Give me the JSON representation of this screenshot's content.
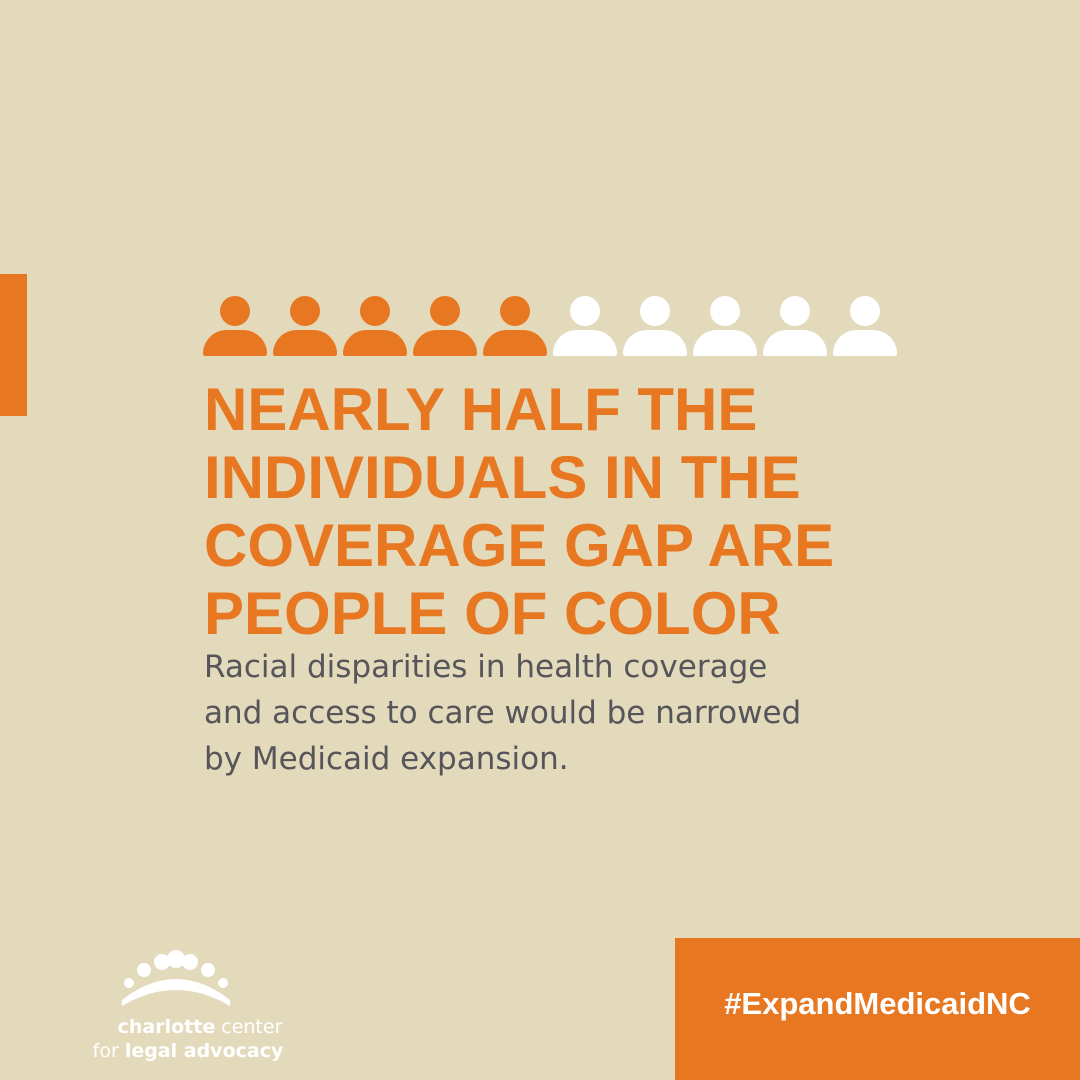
{
  "colors": {
    "background": "#e3dabb",
    "accent": "#e87722",
    "body_text": "#55555a",
    "white": "#ffffff"
  },
  "icon_row": {
    "icon": "person-icon",
    "total": 10,
    "highlighted": 5,
    "highlight_color": "#e87722",
    "other_color": "#ffffff"
  },
  "headline": {
    "lines": [
      "NEARLY HALF THE",
      "INDIVIDUALS IN THE",
      "COVERAGE GAP ARE",
      "PEOPLE OF COLOR"
    ]
  },
  "subtext": {
    "lines": [
      "Racial disparities in health coverage",
      "and access to care would be narrowed",
      "by Medicaid expansion."
    ]
  },
  "logo": {
    "icon": "people-arc-logo-icon",
    "line1_bold": "charlotte",
    "line1_rest": " center",
    "line2_rest": "for ",
    "line2_bold": "legal advocacy"
  },
  "hashtag": "#ExpandMedicaidNC"
}
